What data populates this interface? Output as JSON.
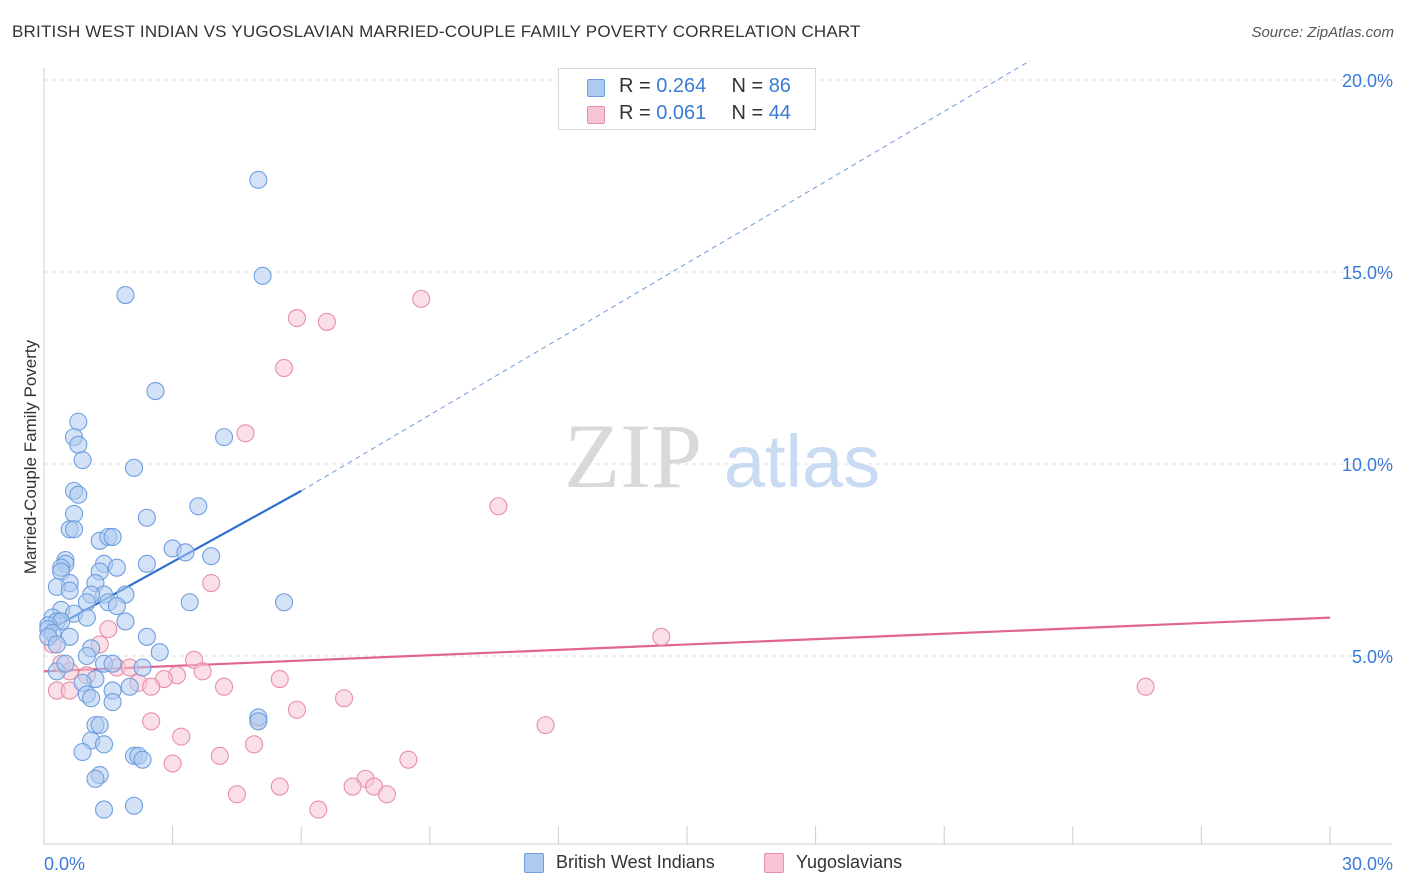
{
  "header": {
    "title": "BRITISH WEST INDIAN VS YUGOSLAVIAN MARRIED-COUPLE FAMILY POVERTY CORRELATION CHART",
    "source": "Source: ZipAtlas.com"
  },
  "watermark": {
    "zip": "ZIP",
    "atlas": "atlas"
  },
  "legend_top": [
    {
      "r_label": "R =",
      "r_value": "0.264",
      "n_label": "N =",
      "n_value": "86"
    },
    {
      "r_label": "R =",
      "r_value": "0.061",
      "n_label": "N =",
      "n_value": "44"
    }
  ],
  "colors": {
    "blue_fill": "#aecbef",
    "blue_stroke": "#6f9fe0",
    "blue_line": "#2f6fd0",
    "pink_fill": "#f7c4d4",
    "pink_stroke": "#e88fab",
    "pink_line": "#e0658f",
    "tick_label": "#3a7bd5",
    "grid": "#dddddd"
  },
  "chart_data": {
    "type": "scatter",
    "title": "BRITISH WEST INDIAN VS YUGOSLAVIAN MARRIED-COUPLE FAMILY POVERTY CORRELATION CHART",
    "xlabel": "",
    "ylabel": "Married-Couple Family Poverty",
    "xlim": [
      0,
      30
    ],
    "ylim": [
      0,
      20.5
    ],
    "x_tick_labels": [
      "0.0%",
      "30.0%"
    ],
    "y_ticks": [
      5,
      10,
      15,
      20
    ],
    "y_tick_labels": [
      "5.0%",
      "10.0%",
      "15.0%",
      "20.0%"
    ],
    "grid": true,
    "legend_position": "bottom",
    "series": [
      {
        "name": "British West Indians",
        "color": "#6f9fe0",
        "r": 0.264,
        "n": 86,
        "trend": {
          "x": [
            0.0,
            6.0
          ],
          "y": [
            5.6,
            9.3
          ],
          "dashed_extension_to": [
            23.0,
            20.5
          ]
        },
        "points": [
          [
            5.0,
            17.4
          ],
          [
            5.1,
            14.9
          ],
          [
            1.9,
            14.4
          ],
          [
            2.6,
            11.9
          ],
          [
            0.8,
            11.1
          ],
          [
            0.7,
            10.7
          ],
          [
            4.2,
            10.7
          ],
          [
            0.8,
            10.5
          ],
          [
            0.9,
            10.1
          ],
          [
            2.1,
            9.9
          ],
          [
            0.7,
            9.3
          ],
          [
            0.8,
            9.2
          ],
          [
            3.6,
            8.9
          ],
          [
            0.7,
            8.7
          ],
          [
            2.4,
            8.6
          ],
          [
            0.6,
            8.3
          ],
          [
            0.7,
            8.3
          ],
          [
            1.3,
            8.0
          ],
          [
            1.5,
            8.1
          ],
          [
            1.6,
            8.1
          ],
          [
            3.0,
            7.8
          ],
          [
            3.3,
            7.7
          ],
          [
            3.9,
            7.6
          ],
          [
            0.5,
            7.5
          ],
          [
            0.5,
            7.4
          ],
          [
            2.4,
            7.4
          ],
          [
            1.4,
            7.4
          ],
          [
            0.4,
            7.3
          ],
          [
            0.4,
            7.2
          ],
          [
            1.3,
            7.2
          ],
          [
            1.7,
            7.3
          ],
          [
            0.6,
            6.9
          ],
          [
            1.2,
            6.9
          ],
          [
            0.3,
            6.8
          ],
          [
            0.6,
            6.7
          ],
          [
            1.4,
            6.6
          ],
          [
            1.1,
            6.6
          ],
          [
            1.9,
            6.6
          ],
          [
            1.5,
            6.4
          ],
          [
            1.0,
            6.4
          ],
          [
            3.4,
            6.4
          ],
          [
            5.6,
            6.4
          ],
          [
            1.7,
            6.3
          ],
          [
            0.4,
            6.2
          ],
          [
            0.7,
            6.1
          ],
          [
            1.0,
            6.0
          ],
          [
            0.2,
            6.0
          ],
          [
            0.3,
            5.9
          ],
          [
            0.4,
            5.9
          ],
          [
            0.1,
            5.8
          ],
          [
            0.1,
            5.7
          ],
          [
            1.9,
            5.9
          ],
          [
            0.2,
            5.6
          ],
          [
            0.1,
            5.5
          ],
          [
            0.6,
            5.5
          ],
          [
            2.4,
            5.5
          ],
          [
            0.3,
            5.3
          ],
          [
            1.1,
            5.2
          ],
          [
            1.0,
            5.0
          ],
          [
            2.7,
            5.1
          ],
          [
            1.4,
            4.8
          ],
          [
            1.6,
            4.8
          ],
          [
            2.3,
            4.7
          ],
          [
            0.3,
            4.6
          ],
          [
            0.5,
            4.8
          ],
          [
            1.2,
            4.4
          ],
          [
            0.9,
            4.3
          ],
          [
            2.0,
            4.2
          ],
          [
            1.6,
            4.1
          ],
          [
            1.0,
            4.0
          ],
          [
            1.1,
            3.9
          ],
          [
            1.6,
            3.8
          ],
          [
            5.0,
            3.4
          ],
          [
            1.2,
            3.2
          ],
          [
            1.3,
            3.2
          ],
          [
            1.1,
            2.8
          ],
          [
            1.4,
            2.7
          ],
          [
            0.9,
            2.5
          ],
          [
            2.1,
            2.4
          ],
          [
            2.2,
            2.4
          ],
          [
            2.3,
            2.3
          ],
          [
            1.3,
            1.9
          ],
          [
            1.2,
            1.8
          ],
          [
            1.4,
            1.0
          ],
          [
            2.1,
            1.1
          ],
          [
            5.0,
            3.3
          ]
        ]
      },
      {
        "name": "Yugoslavians",
        "color": "#e88fab",
        "r": 0.061,
        "n": 44,
        "trend": {
          "x": [
            0.0,
            30.0
          ],
          "y": [
            4.6,
            6.0
          ]
        },
        "points": [
          [
            8.8,
            14.3
          ],
          [
            5.9,
            13.8
          ],
          [
            6.6,
            13.7
          ],
          [
            5.6,
            12.5
          ],
          [
            4.7,
            10.8
          ],
          [
            10.6,
            8.9
          ],
          [
            3.9,
            6.9
          ],
          [
            14.4,
            5.5
          ],
          [
            1.5,
            5.7
          ],
          [
            1.3,
            5.3
          ],
          [
            0.2,
            5.3
          ],
          [
            3.5,
            4.9
          ],
          [
            1.7,
            4.7
          ],
          [
            0.4,
            4.8
          ],
          [
            3.7,
            4.6
          ],
          [
            3.1,
            4.5
          ],
          [
            0.6,
            4.6
          ],
          [
            2.0,
            4.7
          ],
          [
            1.0,
            4.5
          ],
          [
            2.8,
            4.4
          ],
          [
            5.5,
            4.4
          ],
          [
            2.2,
            4.3
          ],
          [
            2.5,
            4.2
          ],
          [
            4.2,
            4.2
          ],
          [
            0.3,
            4.1
          ],
          [
            0.6,
            4.1
          ],
          [
            25.7,
            4.2
          ],
          [
            7.0,
            3.9
          ],
          [
            5.9,
            3.6
          ],
          [
            11.7,
            3.2
          ],
          [
            2.5,
            3.3
          ],
          [
            5.0,
            3.3
          ],
          [
            3.2,
            2.9
          ],
          [
            4.9,
            2.7
          ],
          [
            4.1,
            2.4
          ],
          [
            3.0,
            2.2
          ],
          [
            8.5,
            2.3
          ],
          [
            7.5,
            1.8
          ],
          [
            7.2,
            1.6
          ],
          [
            7.7,
            1.6
          ],
          [
            5.5,
            1.6
          ],
          [
            4.5,
            1.4
          ],
          [
            8.0,
            1.4
          ],
          [
            6.4,
            1.0
          ]
        ]
      }
    ]
  }
}
